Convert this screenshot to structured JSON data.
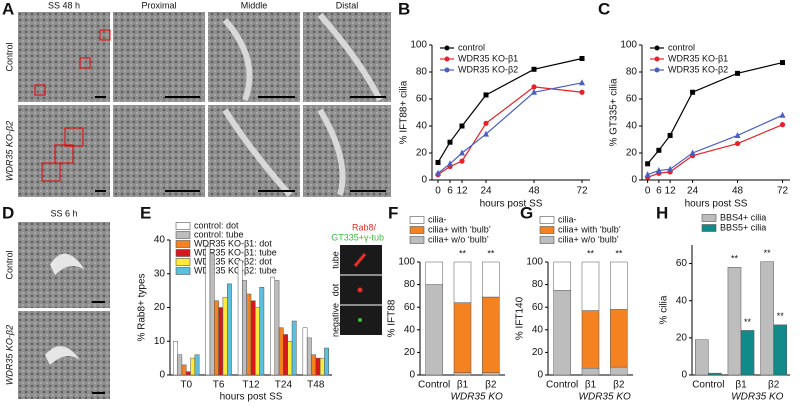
{
  "letters": [
    "A",
    "B",
    "C",
    "D",
    "E",
    "F",
    "G",
    "H"
  ],
  "panel_a": {
    "title": "SS 48 h",
    "columns": [
      "Proximal",
      "Middle",
      "Distal"
    ],
    "rows": [
      "Control",
      "WDR35 KO-β2"
    ]
  },
  "panel_d": {
    "title": "SS 6 h",
    "rows": [
      "Control",
      "WDR35 KO-β2"
    ]
  },
  "chart_data": [
    {
      "type": "line",
      "ylabel": "% IFT88+ cilia",
      "xlabel": "hours post SS",
      "x": [
        0,
        6,
        12,
        24,
        48,
        72
      ],
      "xlim": [
        -3,
        76
      ],
      "xticks": [
        0,
        6,
        12,
        24,
        48,
        72
      ],
      "ylim": [
        0,
        100
      ],
      "yticks": [
        0,
        20,
        40,
        60,
        80,
        100
      ],
      "series": [
        {
          "name": "control",
          "color": "#000000",
          "marker": "square",
          "values": [
            13,
            28,
            40,
            63,
            82,
            90
          ]
        },
        {
          "name": "WDR35 KO-β1",
          "color": "#e8202a",
          "marker": "circle",
          "values": [
            4,
            10,
            14,
            42,
            69,
            65
          ]
        },
        {
          "name": "WDR35 KO-β2",
          "color": "#4a5fc1",
          "marker": "triangle",
          "values": [
            5,
            12,
            20,
            34,
            65,
            72
          ]
        }
      ]
    },
    {
      "type": "line",
      "ylabel": "% GT335+ cilia",
      "xlabel": "hours post SS",
      "x": [
        0,
        6,
        12,
        24,
        48,
        72
      ],
      "xlim": [
        -3,
        76
      ],
      "xticks": [
        0,
        6,
        12,
        24,
        48,
        72
      ],
      "ylim": [
        0,
        100
      ],
      "yticks": [
        0,
        20,
        40,
        60,
        80,
        100
      ],
      "series": [
        {
          "name": "control",
          "color": "#000000",
          "marker": "square",
          "values": [
            12,
            22,
            33,
            65,
            79,
            87
          ]
        },
        {
          "name": "WDR35 KO-β1",
          "color": "#e8202a",
          "marker": "circle",
          "values": [
            2,
            5,
            6,
            18,
            27,
            41
          ]
        },
        {
          "name": "WDR35 KO-β2",
          "color": "#4a5fc1",
          "marker": "triangle",
          "values": [
            4,
            7,
            8,
            20,
            33,
            48
          ]
        }
      ]
    },
    {
      "type": "bar",
      "ylabel": "% Rab8+ types",
      "xlabel": "hours post SS",
      "categories": [
        "T0",
        "T6",
        "T12",
        "T24",
        "T48"
      ],
      "ylim": [
        0,
        40
      ],
      "yticks": [
        0,
        10,
        20,
        30,
        40
      ],
      "inset": {
        "title_1": "Rab8/",
        "title_2": "GT335+γ-tub",
        "labels": [
          "tube",
          "dot",
          "negative"
        ]
      },
      "series": [
        {
          "name": "control: dot",
          "color": "#ffffff",
          "values": [
            10,
            38,
            34,
            29,
            14
          ]
        },
        {
          "name": "control: tube",
          "color": "#bdbdbd",
          "values": [
            6,
            36,
            28,
            28,
            11
          ]
        },
        {
          "name": "WDR35 KO-β1: dot",
          "color": "#f58220",
          "values": [
            3,
            22,
            24,
            14,
            6
          ]
        },
        {
          "name": "WDR35 KO-β1: tube",
          "color": "#d7191c",
          "values": [
            1,
            20,
            22,
            12,
            5
          ]
        },
        {
          "name": "WDR35 KO-β2: dot",
          "color": "#ffeb3b",
          "values": [
            5,
            23,
            20,
            10,
            5
          ]
        },
        {
          "name": "WDR35 KO-β2: tube",
          "color": "#5bc0de",
          "values": [
            6,
            27,
            26,
            16,
            8
          ]
        }
      ]
    },
    {
      "type": "stacked_bar",
      "ylabel": "% IFT88",
      "categories": [
        "Control",
        "β1",
        "β2"
      ],
      "group_label": "WDR35 KO",
      "significance": [
        null,
        "**",
        "**"
      ],
      "ylim": [
        0,
        100
      ],
      "yticks": [
        0,
        20,
        40,
        60,
        80,
        100
      ],
      "series": [
        {
          "name": "cilia-",
          "color": "#ffffff",
          "values": [
            20,
            36,
            31
          ]
        },
        {
          "name": "cilia+ with ‘bulb’",
          "color": "#f58220",
          "values": [
            0,
            62,
            67
          ]
        },
        {
          "name": "cilia+ w/o ‘bulb’",
          "color": "#bdbdbd",
          "values": [
            80,
            2,
            2
          ]
        }
      ]
    },
    {
      "type": "stacked_bar",
      "ylabel": "% IFT140",
      "categories": [
        "Control",
        "β1",
        "β2"
      ],
      "group_label": "WDR35 KO",
      "significance": [
        null,
        "**",
        "**"
      ],
      "ylim": [
        0,
        100
      ],
      "yticks": [
        0,
        20,
        40,
        60,
        80,
        100
      ],
      "series": [
        {
          "name": "cilia-",
          "color": "#ffffff",
          "values": [
            25,
            43,
            42
          ]
        },
        {
          "name": "cilia+ with ‘bulb’",
          "color": "#f58220",
          "values": [
            0,
            51,
            51
          ]
        },
        {
          "name": "cilia+ w/o ‘bulb’",
          "color": "#bdbdbd",
          "values": [
            75,
            6,
            7
          ]
        }
      ]
    },
    {
      "type": "bar",
      "ylabel": "% cilia",
      "categories": [
        "Control",
        "β1",
        "β2"
      ],
      "group_label": "WDR35 KO",
      "ylim": [
        0,
        70
      ],
      "yticks": [
        0,
        20,
        40,
        60
      ],
      "series": [
        {
          "name": "BBS4+ cilia",
          "color": "#bdbdbd",
          "values": [
            19,
            58,
            61
          ],
          "significance": [
            null,
            "**",
            "**"
          ]
        },
        {
          "name": "BBS5+ cilia",
          "color": "#138a8a",
          "values": [
            1,
            24,
            27
          ],
          "significance": [
            null,
            "**",
            "**"
          ]
        }
      ]
    }
  ]
}
